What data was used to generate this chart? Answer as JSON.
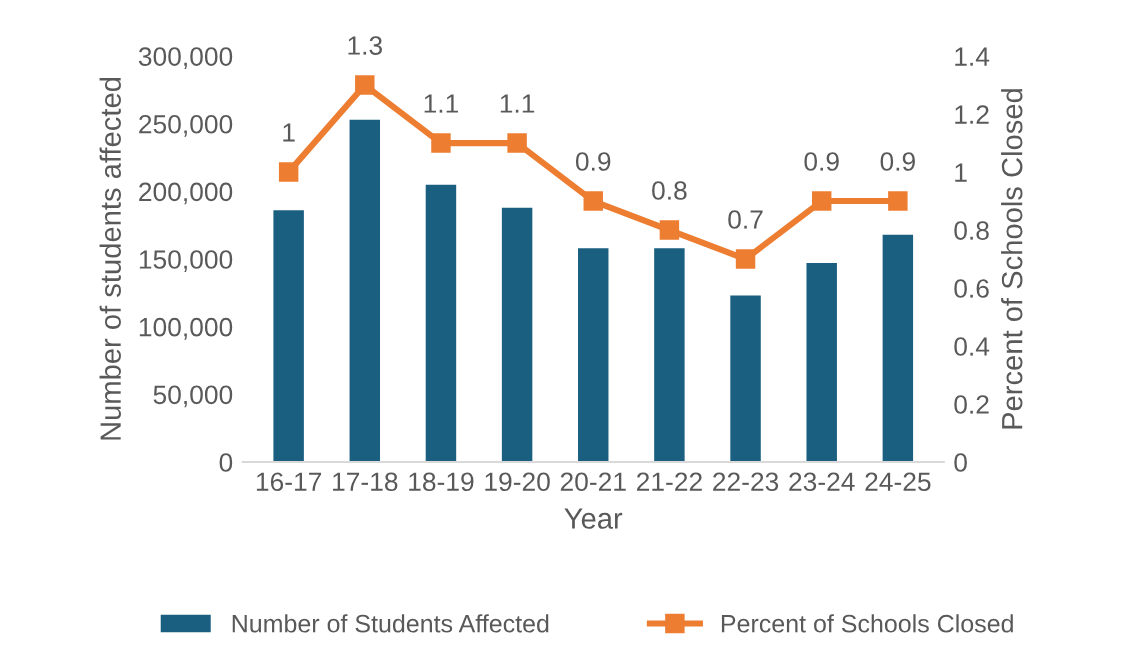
{
  "chart_data": {
    "type": "bar",
    "xlabel": "Year",
    "ylabel": "Number of students affected",
    "y2label": "Percent of Schools Closed",
    "categories": [
      "16-17",
      "17-18",
      "18-19",
      "19-20",
      "20-21",
      "21-22",
      "22-23",
      "23-24",
      "24-25"
    ],
    "series": [
      {
        "name": "Number of Students Affected",
        "color": "#1a5e80",
        "values": [
          186000,
          253000,
          205000,
          188000,
          158000,
          158000,
          123000,
          147000,
          168000
        ]
      },
      {
        "name": "Percent of Schools Closed",
        "type": "line",
        "axis": "y2",
        "color": "#ed7d31",
        "marker": "square",
        "data_labels": true,
        "values": [
          1,
          1.3,
          1.1,
          1.1,
          0.9,
          0.8,
          0.7,
          0.9,
          0.9
        ]
      }
    ],
    "ylim": [
      0,
      300000
    ],
    "yticks": [
      {
        "value": 0,
        "label": "0"
      },
      {
        "value": 50000,
        "label": "50,000"
      },
      {
        "value": 100000,
        "label": "100,000"
      },
      {
        "value": 150000,
        "label": "150,000"
      },
      {
        "value": 200000,
        "label": "200,000"
      },
      {
        "value": 250000,
        "label": "250,000"
      },
      {
        "value": 300000,
        "label": "300,000"
      }
    ],
    "y2lim": [
      0,
      1.4
    ],
    "y2ticks": [
      0,
      0.2,
      0.4,
      0.6,
      0.8,
      1,
      1.2,
      1.4
    ],
    "grid": false,
    "legend": "bottom"
  }
}
